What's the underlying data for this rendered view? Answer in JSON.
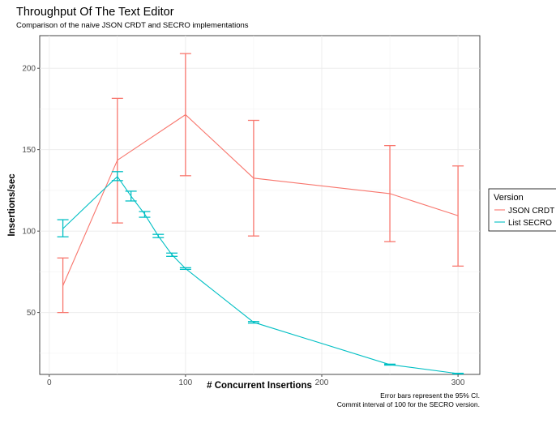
{
  "chart_data": {
    "type": "line",
    "title": "Throughput Of The Text Editor",
    "subtitle": "Comparison of the naive JSON CRDT and SECRO implementations",
    "xlabel": "# Concurrent Insertions",
    "ylabel": "Insertions/sec",
    "xlim": [
      -7,
      316
    ],
    "ylim": [
      12,
      220
    ],
    "x_ticks": [
      0,
      100,
      200,
      300
    ],
    "y_ticks": [
      50,
      100,
      150,
      200
    ],
    "grid": true,
    "legend": {
      "title": "Version",
      "position": "right"
    },
    "caption": [
      "Error bars represent the 95% CI.",
      "Commit interval of 100 for the SECRO version."
    ],
    "series": [
      {
        "name": "JSON CRDT",
        "color": "#F8766D",
        "x": [
          10,
          50,
          100,
          150,
          250,
          300
        ],
        "y": [
          66.5,
          143.5,
          171.5,
          132.5,
          123,
          109.5
        ],
        "ci_low": [
          50,
          105,
          134,
          97,
          93.5,
          78.5
        ],
        "ci_high": [
          83.5,
          181.5,
          209,
          168,
          152.5,
          140
        ]
      },
      {
        "name": "List SECRO",
        "color": "#00BFC4",
        "x": [
          10,
          50,
          60,
          70,
          80,
          90,
          100,
          150,
          250,
          300
        ],
        "y": [
          101.5,
          133.5,
          121.5,
          110.5,
          97,
          85.5,
          77,
          44,
          18,
          12.5
        ],
        "ci_low": [
          96.5,
          131,
          118.5,
          108.5,
          96,
          84.5,
          76.5,
          43.5,
          17.7,
          12.3
        ],
        "ci_high": [
          107,
          136.5,
          124.5,
          112,
          98,
          86.5,
          77.5,
          44.5,
          18.3,
          12.7
        ]
      }
    ]
  }
}
